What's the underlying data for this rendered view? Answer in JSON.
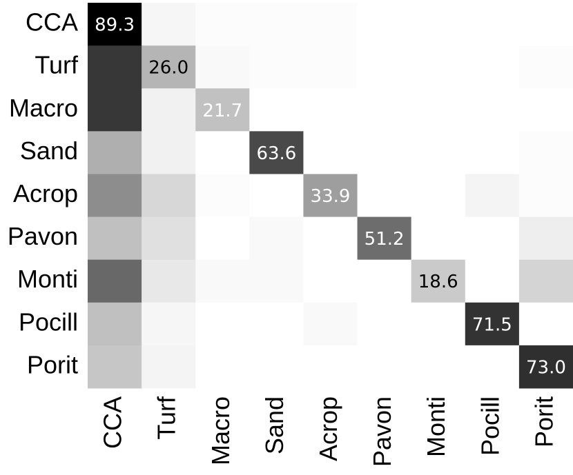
{
  "chart_data": {
    "type": "heatmap",
    "x": [
      "CCA",
      "Turf",
      "Macro",
      "Sand",
      "Acrop",
      "Pavon",
      "Monti",
      "Pocill",
      "Porit"
    ],
    "y": [
      "CCA",
      "Turf",
      "Macro",
      "Sand",
      "Acrop",
      "Pavon",
      "Monti",
      "Pocill",
      "Porit"
    ],
    "values": [
      [
        89.3,
        3,
        1,
        1,
        1,
        0,
        0,
        0,
        0
      ],
      [
        70,
        26.0,
        2,
        1,
        1,
        0,
        0,
        0,
        1
      ],
      [
        70,
        5,
        21.7,
        0,
        0,
        0,
        0,
        0,
        0
      ],
      [
        28,
        5,
        0,
        63.6,
        0,
        0,
        0,
        0,
        1
      ],
      [
        40,
        14,
        1,
        0,
        33.9,
        0,
        0,
        4,
        1
      ],
      [
        22,
        11,
        0,
        2,
        0,
        51.2,
        0,
        0,
        6
      ],
      [
        53,
        8,
        2,
        2,
        0,
        0,
        18.6,
        0,
        15
      ],
      [
        22,
        3,
        0,
        0,
        2,
        0,
        0,
        71.5,
        0
      ],
      [
        20,
        4,
        0,
        0,
        0,
        0,
        0,
        0,
        73.0
      ]
    ],
    "value_labels": [
      [
        "89.3",
        null,
        null,
        null,
        null,
        null,
        null,
        null,
        null
      ],
      [
        null,
        "26.0",
        null,
        null,
        null,
        null,
        null,
        null,
        null
      ],
      [
        null,
        null,
        "21.7",
        null,
        null,
        null,
        null,
        null,
        null
      ],
      [
        null,
        null,
        null,
        "63.6",
        null,
        null,
        null,
        null,
        null
      ],
      [
        null,
        null,
        null,
        null,
        "33.9",
        null,
        null,
        null,
        null
      ],
      [
        null,
        null,
        null,
        null,
        null,
        "51.2",
        null,
        null,
        null
      ],
      [
        null,
        null,
        null,
        null,
        null,
        null,
        "18.6",
        null,
        null
      ],
      [
        null,
        null,
        null,
        null,
        null,
        null,
        null,
        "71.5",
        null
      ],
      [
        null,
        null,
        null,
        null,
        null,
        null,
        null,
        null,
        "73.0"
      ]
    ],
    "label_colors": [
      "#ffffff",
      "#000000",
      "#ffffff",
      "#ffffff",
      "#ffffff",
      "#ffffff",
      "#000000",
      "#ffffff",
      "#ffffff"
    ],
    "colormap": [
      "#ffffff",
      "#000000"
    ]
  }
}
